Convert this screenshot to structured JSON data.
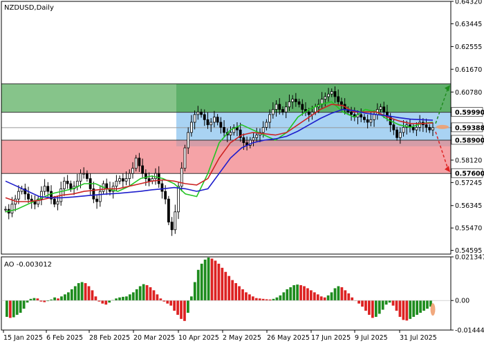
{
  "symbol_label": "NZDUSD,Daily",
  "ao_label": "AO -0.003012",
  "colors": {
    "zone_upper": "#5fb06a",
    "zone_middle": "#a9d3f3",
    "zone_lower": "#f5a3a7",
    "ma_fast": "#22c422",
    "ma_mid": "#cc2222",
    "ma_slow": "#1d1dcc",
    "ao_up": "#1e8c1e",
    "ao_down": "#dd2222",
    "arrow_up": "#1e8c1e",
    "arrow_down": "#dd2222",
    "projection": "#f0a070"
  },
  "price_axis": {
    "ticks": [
      "0.64320",
      "0.63445",
      "0.62555",
      "0.61670",
      "0.60780",
      "0.59990",
      "0.59388",
      "0.58900",
      "0.58120",
      "0.57600",
      "0.57245",
      "0.56345",
      "0.55470",
      "0.54595"
    ],
    "highlight": [
      "0.61100",
      "0.59990",
      "0.59388",
      "0.58900",
      "0.57600"
    ]
  },
  "ao_axis": {
    "ticks": [
      "0.021347",
      "0.00",
      "-0.014448"
    ]
  },
  "date_axis": {
    "labels": [
      "15 Jan 2025",
      "6 Feb 2025",
      "28 Feb 2025",
      "20 Mar 2025",
      "10 Apr 2025",
      "2 May 2025",
      "26 May 2025",
      "17 Jun 2025",
      "9 Jul 2025",
      "31 Jul 2025"
    ]
  },
  "chart_data": [
    {
      "type": "candlestick",
      "title": "NZDUSD,Daily",
      "ylim": [
        0.5445,
        0.6432
      ],
      "x": [
        "2025-01-13",
        "2025-08-15"
      ],
      "levels": {
        "resistance_2": 0.611,
        "resistance_1": 0.5999,
        "current_price": 0.59388,
        "support_1": 0.589,
        "support_2": 0.576
      },
      "zones": [
        {
          "from": 0.5999,
          "to": 0.611,
          "color": "green"
        },
        {
          "from": 0.589,
          "to": 0.5999,
          "color": "blue"
        },
        {
          "from": 0.576,
          "to": 0.589,
          "color": "red"
        }
      ],
      "close_series": [
        0.562,
        0.5605,
        0.564,
        0.566,
        0.569,
        0.57,
        0.568,
        0.566,
        0.565,
        0.564,
        0.566,
        0.569,
        0.571,
        0.569,
        0.566,
        0.564,
        0.565,
        0.57,
        0.573,
        0.572,
        0.57,
        0.571,
        0.573,
        0.576,
        0.576,
        0.574,
        0.57,
        0.566,
        0.565,
        0.569,
        0.572,
        0.57,
        0.569,
        0.571,
        0.573,
        0.574,
        0.573,
        0.574,
        0.576,
        0.578,
        0.582,
        0.579,
        0.576,
        0.574,
        0.573,
        0.574,
        0.576,
        0.572,
        0.569,
        0.566,
        0.557,
        0.554,
        0.561,
        0.571,
        0.578,
        0.586,
        0.592,
        0.596,
        0.599,
        0.6,
        0.599,
        0.597,
        0.595,
        0.596,
        0.598,
        0.596,
        0.594,
        0.592,
        0.591,
        0.592,
        0.594,
        0.593,
        0.59,
        0.588,
        0.587,
        0.589,
        0.59,
        0.591,
        0.592,
        0.594,
        0.596,
        0.599,
        0.601,
        0.603,
        0.601,
        0.6,
        0.602,
        0.604,
        0.605,
        0.604,
        0.603,
        0.601,
        0.6,
        0.599,
        0.6,
        0.602,
        0.603,
        0.605,
        0.606,
        0.607,
        0.608,
        0.606,
        0.604,
        0.603,
        0.601,
        0.6,
        0.599,
        0.598,
        0.599,
        0.598,
        0.597,
        0.596,
        0.597,
        0.599,
        0.601,
        0.602,
        0.6,
        0.598,
        0.595,
        0.593,
        0.59,
        0.592,
        0.594,
        0.595,
        0.594,
        0.593,
        0.594,
        0.596,
        0.595,
        0.594,
        0.593,
        0.5939
      ],
      "moving_averages": [
        {
          "color": "green",
          "values": [
            0.561,
            0.562,
            0.564,
            0.566,
            0.568,
            0.569,
            0.57,
            0.572,
            0.572,
            0.57,
            0.569,
            0.571,
            0.574,
            0.575,
            0.574,
            0.572,
            0.568,
            0.567,
            0.576,
            0.588,
            0.593,
            0.595,
            0.593,
            0.591,
            0.589,
            0.592,
            0.598,
            0.601,
            0.603,
            0.604,
            0.6,
            0.598,
            0.601,
            0.6,
            0.597,
            0.595,
            0.594,
            0.5955,
            0.596
          ]
        },
        {
          "color": "red",
          "values": [
            0.5665,
            0.565,
            0.565,
            0.5655,
            0.5665,
            0.5675,
            0.568,
            0.569,
            0.5695,
            0.57,
            0.57,
            0.571,
            0.572,
            0.573,
            0.5735,
            0.573,
            0.572,
            0.5715,
            0.574,
            0.582,
            0.588,
            0.591,
            0.592,
            0.5915,
            0.591,
            0.592,
            0.595,
            0.598,
            0.601,
            0.603,
            0.6025,
            0.6,
            0.6,
            0.6,
            0.598,
            0.5965,
            0.5955,
            0.5955,
            0.5957
          ]
        },
        {
          "color": "blue",
          "values": [
            0.573,
            0.571,
            0.569,
            0.567,
            0.5665,
            0.5665,
            0.5668,
            0.5672,
            0.5676,
            0.568,
            0.5682,
            0.5686,
            0.569,
            0.5696,
            0.57,
            0.5705,
            0.57,
            0.569,
            0.57,
            0.576,
            0.582,
            0.586,
            0.588,
            0.589,
            0.5895,
            0.5905,
            0.5925,
            0.595,
            0.5975,
            0.5995,
            0.601,
            0.6005,
            0.5995,
            0.599,
            0.5985,
            0.5978,
            0.5972,
            0.597,
            0.5968
          ]
        }
      ],
      "forecast": {
        "up_target": 0.611,
        "down_target": 0.576
      }
    },
    {
      "type": "bar",
      "title": "AO -0.003012",
      "ylim": [
        -0.014448,
        0.021347
      ],
      "values": [
        -0.008,
        -0.0085,
        -0.0082,
        -0.007,
        -0.006,
        -0.004,
        -0.001,
        0.0008,
        0.0012,
        0.001,
        -0.0005,
        -0.0008,
        -0.0003,
        0.0005,
        0.0015,
        0.001,
        0.002,
        0.003,
        0.004,
        0.0055,
        0.007,
        0.0085,
        0.009,
        0.0085,
        0.007,
        0.005,
        0.002,
        -0.0005,
        -0.0015,
        -0.002,
        -0.001,
        0.0002,
        0.001,
        0.0015,
        0.0018,
        0.002,
        0.003,
        0.004,
        0.0055,
        0.007,
        0.008,
        0.0075,
        0.0065,
        0.005,
        0.003,
        0.001,
        -0.0005,
        -0.0015,
        -0.0025,
        -0.005,
        -0.007,
        -0.009,
        -0.01,
        -0.006,
        0.002,
        0.009,
        0.015,
        0.018,
        0.02,
        0.021,
        0.0205,
        0.0195,
        0.018,
        0.016,
        0.014,
        0.012,
        0.01,
        0.0085,
        0.007,
        0.0055,
        0.004,
        0.003,
        0.002,
        0.0012,
        0.001,
        0.0008,
        0.0006,
        0.0005,
        0.0008,
        0.0015,
        0.0025,
        0.004,
        0.0055,
        0.0065,
        0.0075,
        0.0078,
        0.0075,
        0.007,
        0.006,
        0.005,
        0.004,
        0.003,
        0.002,
        0.0015,
        0.0025,
        0.004,
        0.006,
        0.007,
        0.0065,
        0.005,
        0.0035,
        0.0015,
        0.0,
        -0.0015,
        -0.003,
        -0.005,
        -0.007,
        -0.0085,
        -0.008,
        -0.0065,
        -0.0045,
        -0.002,
        -0.001,
        -0.0025,
        -0.005,
        -0.008,
        -0.0095,
        -0.0098,
        -0.009,
        -0.008,
        -0.007,
        -0.006,
        -0.005,
        -0.004,
        -0.003
      ]
    }
  ]
}
